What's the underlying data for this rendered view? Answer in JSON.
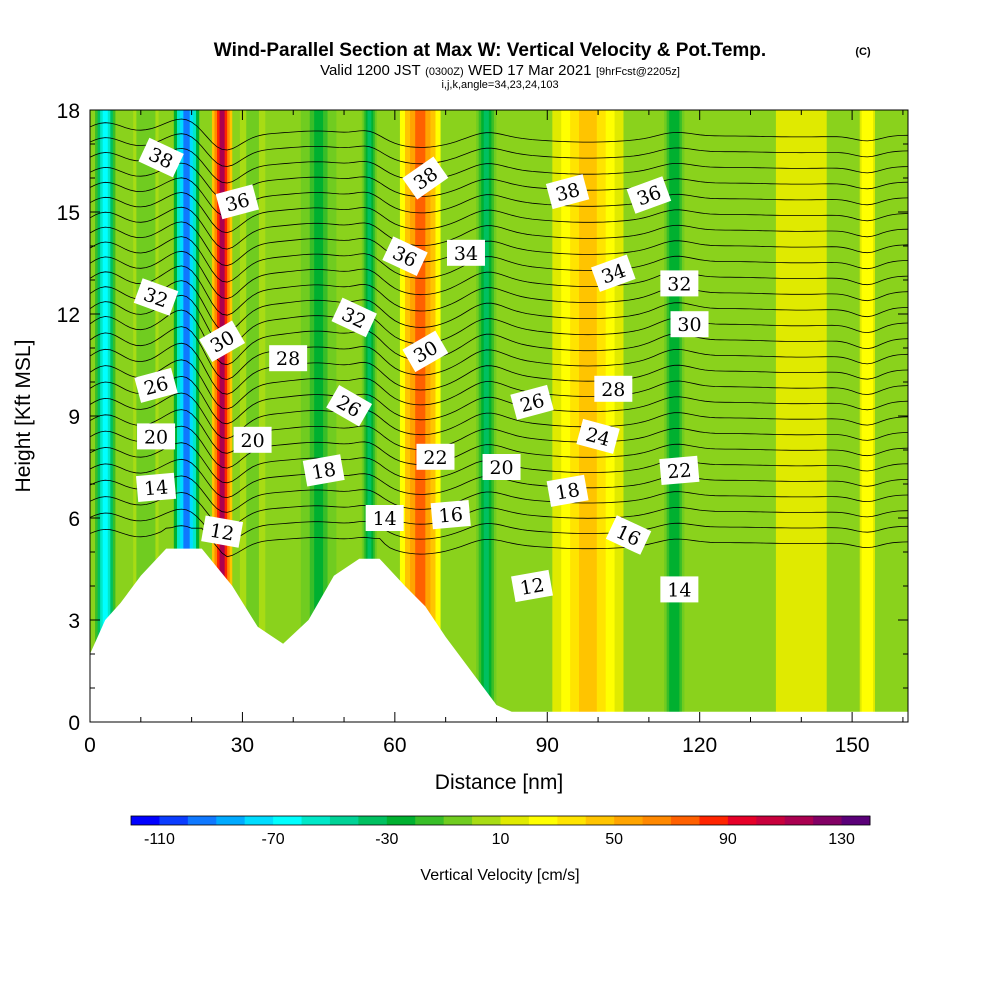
{
  "chart_data": {
    "type": "heatmap",
    "title": "Wind-Parallel Section at Max W: Vertical Velocity & Pot.Temp.",
    "title_mark": "(C)",
    "subtitle": {
      "prefix": "Valid 1200 JST",
      "utc": "(0300Z)",
      "date": "WED 17 Mar 2021",
      "forecast": "[9hrFcst@2205z]",
      "indices": "i,j,k,angle=34,23,24,103"
    },
    "xlabel": "Distance [nm]",
    "ylabel": "Height [Kft MSL]",
    "xlim": [
      0,
      161
    ],
    "ylim": [
      0,
      18
    ],
    "x_ticks": [
      0,
      30,
      60,
      90,
      120,
      150
    ],
    "y_ticks": [
      0,
      3,
      6,
      9,
      12,
      15,
      18
    ],
    "colorbar": {
      "label": "Vertical Velocity [cm/s]",
      "min": -120,
      "max": 140,
      "tick_labels": [
        -110,
        -70,
        -30,
        10,
        50,
        90,
        130
      ],
      "colors": [
        "#0000ff",
        "#0a3cff",
        "#0f78ff",
        "#00aaff",
        "#00dcff",
        "#00ffff",
        "#00e8c8",
        "#00d296",
        "#00c060",
        "#00b030",
        "#38be28",
        "#70cc20",
        "#a8dc14",
        "#e0ea00",
        "#ffff00",
        "#ffe400",
        "#ffc400",
        "#ffa400",
        "#ff8800",
        "#ff6000",
        "#ff2400",
        "#e60028",
        "#c8003c",
        "#aa0050",
        "#820064",
        "#5a0078"
      ]
    },
    "velocity_columns": [
      {
        "x": 3,
        "value": -70,
        "width": 4
      },
      {
        "x": 11,
        "value": -10,
        "width": 5
      },
      {
        "x": 19,
        "value": -100,
        "width": 5
      },
      {
        "x": 26,
        "value": 110,
        "width": 4
      },
      {
        "x": 32,
        "value": -5,
        "width": 5
      },
      {
        "x": 45,
        "value": -25,
        "width": 7
      },
      {
        "x": 55,
        "value": -40,
        "width": 3
      },
      {
        "x": 65,
        "value": 70,
        "width": 8
      },
      {
        "x": 78,
        "value": -35,
        "width": 4
      },
      {
        "x": 98,
        "value": 40,
        "width": 14
      },
      {
        "x": 115,
        "value": -30,
        "width": 4
      },
      {
        "x": 140,
        "value": 10,
        "width": 10
      },
      {
        "x": 153,
        "value": 30,
        "width": 3
      }
    ],
    "terrain": [
      [
        0,
        2
      ],
      [
        3,
        3
      ],
      [
        6,
        3.5
      ],
      [
        10,
        4.3
      ],
      [
        15,
        5.1
      ],
      [
        22,
        5.1
      ],
      [
        28,
        4.0
      ],
      [
        33,
        2.8
      ],
      [
        38,
        2.3
      ],
      [
        43,
        3.0
      ],
      [
        48,
        4.3
      ],
      [
        53,
        4.8
      ],
      [
        57,
        4.8
      ],
      [
        62,
        4.0
      ],
      [
        66,
        3.4
      ],
      [
        70,
        2.5
      ],
      [
        75,
        1.5
      ],
      [
        80,
        0.5
      ],
      [
        83,
        0.3
      ],
      [
        161,
        0.3
      ]
    ],
    "isentrope_levels": [
      12,
      13,
      14,
      15,
      16,
      17,
      18,
      19,
      20,
      21,
      22,
      23,
      24,
      25,
      26,
      27,
      28,
      29,
      30,
      31,
      32,
      33,
      34,
      35,
      36,
      37,
      38
    ],
    "contour_labels": [
      {
        "text": "38",
        "x": 14,
        "y": 16.6,
        "angle": 25
      },
      {
        "text": "36",
        "x": 29,
        "y": 15.3,
        "angle": -15
      },
      {
        "text": "32",
        "x": 13,
        "y": 12.5,
        "angle": 20
      },
      {
        "text": "30",
        "x": 26,
        "y": 11.2,
        "angle": -30
      },
      {
        "text": "28",
        "x": 39,
        "y": 10.7,
        "angle": 0
      },
      {
        "text": "26",
        "x": 13,
        "y": 9.9,
        "angle": -15
      },
      {
        "text": "20",
        "x": 13,
        "y": 8.4,
        "angle": 0
      },
      {
        "text": "20",
        "x": 32,
        "y": 8.3,
        "angle": 0
      },
      {
        "text": "18",
        "x": 46,
        "y": 7.4,
        "angle": -10
      },
      {
        "text": "14",
        "x": 13,
        "y": 6.9,
        "angle": -5
      },
      {
        "text": "12",
        "x": 26,
        "y": 5.6,
        "angle": 10
      },
      {
        "text": "32",
        "x": 52,
        "y": 11.9,
        "angle": 25
      },
      {
        "text": "26",
        "x": 51,
        "y": 9.3,
        "angle": 30
      },
      {
        "text": "14",
        "x": 58,
        "y": 6.0,
        "angle": 0
      },
      {
        "text": "36",
        "x": 62,
        "y": 13.7,
        "angle": 25
      },
      {
        "text": "38",
        "x": 66,
        "y": 16.0,
        "angle": -35
      },
      {
        "text": "34",
        "x": 74,
        "y": 13.8,
        "angle": 0
      },
      {
        "text": "30",
        "x": 66,
        "y": 10.9,
        "angle": -30
      },
      {
        "text": "22",
        "x": 68,
        "y": 7.8,
        "angle": 0
      },
      {
        "text": "16",
        "x": 71,
        "y": 6.1,
        "angle": -5
      },
      {
        "text": "20",
        "x": 81,
        "y": 7.5,
        "angle": 0
      },
      {
        "text": "26",
        "x": 87,
        "y": 9.4,
        "angle": -15
      },
      {
        "text": "12",
        "x": 87,
        "y": 4.0,
        "angle": -10
      },
      {
        "text": "38",
        "x": 94,
        "y": 15.6,
        "angle": -15
      },
      {
        "text": "18",
        "x": 94,
        "y": 6.8,
        "angle": -10
      },
      {
        "text": "24",
        "x": 100,
        "y": 8.4,
        "angle": 15
      },
      {
        "text": "28",
        "x": 103,
        "y": 9.8,
        "angle": 0
      },
      {
        "text": "34",
        "x": 103,
        "y": 13.2,
        "angle": -20
      },
      {
        "text": "36",
        "x": 110,
        "y": 15.5,
        "angle": -20
      },
      {
        "text": "16",
        "x": 106,
        "y": 5.5,
        "angle": 25
      },
      {
        "text": "32",
        "x": 116,
        "y": 12.9,
        "angle": 0
      },
      {
        "text": "30",
        "x": 118,
        "y": 11.7,
        "angle": 0
      },
      {
        "text": "22",
        "x": 116,
        "y": 7.4,
        "angle": -5
      },
      {
        "text": "14",
        "x": 116,
        "y": 3.9,
        "angle": 0
      }
    ]
  }
}
